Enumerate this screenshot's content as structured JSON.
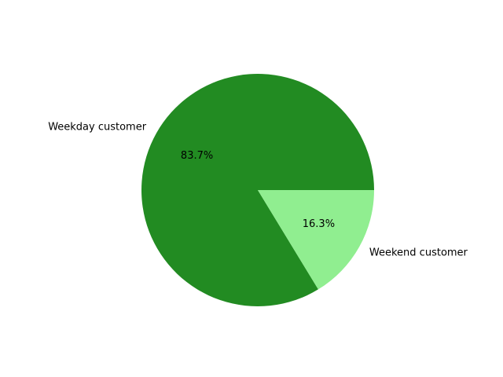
{
  "chart_data": {
    "type": "pie",
    "start_angle_deg": 0,
    "direction": "counterclockwise",
    "slices": [
      {
        "label": "Weekday customer",
        "value": 83.7,
        "pct_label": "83.7%",
        "color": "#228b22"
      },
      {
        "label": "Weekend customer",
        "value": 16.3,
        "pct_label": "16.3%",
        "color": "#90ee90"
      }
    ]
  }
}
